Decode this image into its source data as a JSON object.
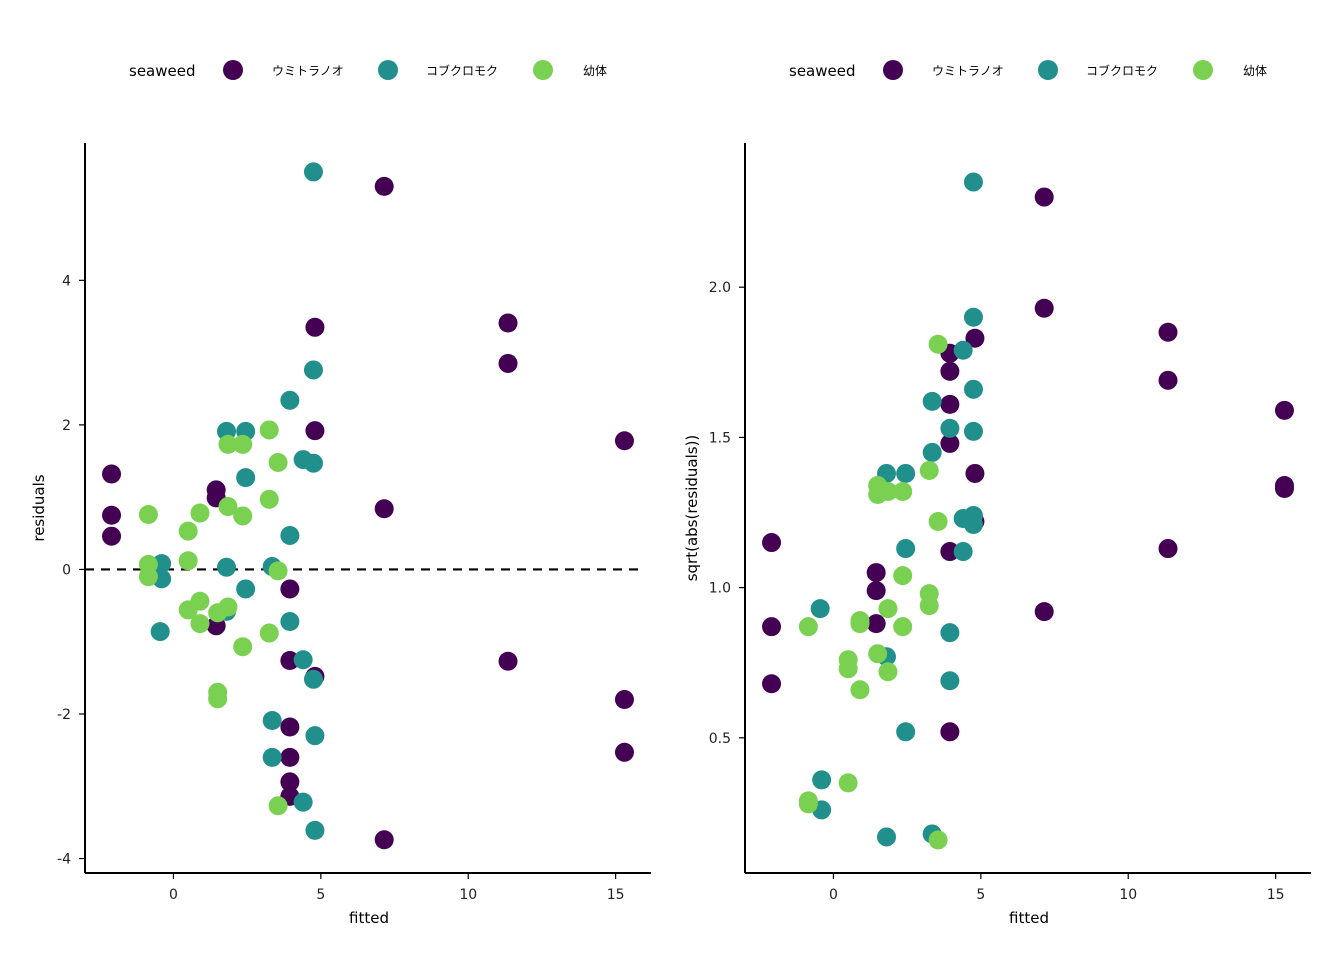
{
  "colors": {
    "ウミトラノオ": "#440154",
    "コブクロモク": "#21908C",
    "幼体": "#7AD151",
    "axis": "#000000",
    "refline": "#000000"
  },
  "chart_data": [
    {
      "type": "scatter",
      "xlabel": "fitted",
      "ylabel": "residuals",
      "legend_title": "seaweed",
      "legend_placement": "top",
      "xlim": [
        -3,
        16.2
      ],
      "ylim": [
        -4.2,
        5.9
      ],
      "xticks": [
        0,
        5,
        10,
        15
      ],
      "yticks": [
        -4,
        -2,
        0,
        2,
        4
      ],
      "reference_line": {
        "y": 0,
        "style": "dashed"
      },
      "grid": false,
      "series": [
        {
          "name": "ウミトラノオ",
          "points": [
            [
              -2.1,
              1.32
            ],
            [
              -2.1,
              0.75
            ],
            [
              -2.1,
              0.46
            ],
            [
              1.45,
              1.1
            ],
            [
              1.45,
              0.99
            ],
            [
              1.45,
              -0.78
            ],
            [
              3.95,
              -0.27
            ],
            [
              3.95,
              -1.26
            ],
            [
              3.95,
              -2.18
            ],
            [
              3.95,
              -2.6
            ],
            [
              3.95,
              -2.94
            ],
            [
              3.95,
              -3.14
            ],
            [
              4.8,
              3.35
            ],
            [
              4.8,
              1.92
            ],
            [
              4.8,
              -1.48
            ],
            [
              7.15,
              5.3
            ],
            [
              7.15,
              0.84
            ],
            [
              7.15,
              -3.74
            ],
            [
              11.35,
              3.41
            ],
            [
              11.35,
              2.85
            ],
            [
              11.35,
              -1.27
            ],
            [
              15.3,
              1.78
            ],
            [
              15.3,
              -1.8
            ],
            [
              15.3,
              -2.53
            ]
          ]
        },
        {
          "name": "コブクロモク",
          "points": [
            [
              -0.4,
              0.08
            ],
            [
              -0.4,
              -0.13
            ],
            [
              -0.45,
              -0.86
            ],
            [
              1.8,
              1.91
            ],
            [
              1.8,
              0.03
            ],
            [
              1.8,
              -0.58
            ],
            [
              2.45,
              1.91
            ],
            [
              2.45,
              1.27
            ],
            [
              2.45,
              -0.27
            ],
            [
              3.35,
              0.04
            ],
            [
              3.35,
              -2.09
            ],
            [
              3.35,
              -2.6
            ],
            [
              3.95,
              2.34
            ],
            [
              3.95,
              0.47
            ],
            [
              3.95,
              -0.72
            ],
            [
              4.4,
              1.52
            ],
            [
              4.4,
              -1.25
            ],
            [
              4.4,
              -3.22
            ],
            [
              4.75,
              5.5
            ],
            [
              4.75,
              2.76
            ],
            [
              4.75,
              1.47
            ],
            [
              4.75,
              -1.52
            ],
            [
              4.8,
              -2.3
            ],
            [
              4.8,
              -3.61
            ]
          ]
        },
        {
          "name": "幼体",
          "points": [
            [
              -0.85,
              0.76
            ],
            [
              -0.85,
              0.07
            ],
            [
              -0.85,
              -0.1
            ],
            [
              0.5,
              0.53
            ],
            [
              0.5,
              0.12
            ],
            [
              0.5,
              -0.56
            ],
            [
              0.9,
              0.78
            ],
            [
              0.9,
              -0.44
            ],
            [
              0.9,
              -0.75
            ],
            [
              1.5,
              -1.7
            ],
            [
              1.5,
              -1.79
            ],
            [
              1.5,
              -0.6
            ],
            [
              1.85,
              1.73
            ],
            [
              1.85,
              0.87
            ],
            [
              1.85,
              -0.52
            ],
            [
              2.35,
              1.73
            ],
            [
              2.35,
              0.74
            ],
            [
              2.35,
              -1.07
            ],
            [
              3.25,
              1.93
            ],
            [
              3.25,
              0.97
            ],
            [
              3.25,
              -0.88
            ],
            [
              3.55,
              1.48
            ],
            [
              3.55,
              -0.02
            ],
            [
              3.55,
              -3.27
            ]
          ]
        }
      ]
    },
    {
      "type": "scatter",
      "xlabel": "fitted",
      "ylabel": "sqrt(abs(residuals))",
      "legend_title": "seaweed",
      "legend_placement": "top",
      "xlim": [
        -3,
        16.2
      ],
      "ylim": [
        0.05,
        2.48
      ],
      "xticks": [
        0,
        5,
        10,
        15
      ],
      "yticks": [
        0.5,
        1.0,
        1.5,
        2.0
      ],
      "grid": false,
      "series": [
        {
          "name": "ウミトラノオ",
          "points": [
            [
              -2.1,
              1.15
            ],
            [
              -2.1,
              0.87
            ],
            [
              -2.1,
              0.68
            ],
            [
              1.45,
              1.05
            ],
            [
              1.45,
              0.99
            ],
            [
              1.45,
              0.88
            ],
            [
              3.95,
              1.78
            ],
            [
              3.95,
              1.72
            ],
            [
              3.95,
              1.61
            ],
            [
              3.95,
              1.48
            ],
            [
              3.95,
              1.12
            ],
            [
              3.95,
              0.52
            ],
            [
              4.8,
              1.83
            ],
            [
              4.8,
              1.38
            ],
            [
              4.8,
              1.22
            ],
            [
              7.15,
              2.3
            ],
            [
              7.15,
              1.93
            ],
            [
              7.15,
              0.92
            ],
            [
              11.35,
              1.85
            ],
            [
              11.35,
              1.69
            ],
            [
              11.35,
              1.13
            ],
            [
              15.3,
              1.59
            ],
            [
              15.3,
              1.34
            ],
            [
              15.3,
              1.33
            ]
          ]
        },
        {
          "name": "コブクロモク",
          "points": [
            [
              -0.4,
              0.36
            ],
            [
              -0.4,
              0.26
            ],
            [
              -0.45,
              0.93
            ],
            [
              1.8,
              1.38
            ],
            [
              1.8,
              0.77
            ],
            [
              1.8,
              0.17
            ],
            [
              2.45,
              1.38
            ],
            [
              2.45,
              1.13
            ],
            [
              2.45,
              0.52
            ],
            [
              3.35,
              1.45
            ],
            [
              3.35,
              1.62
            ],
            [
              3.35,
              0.18
            ],
            [
              3.95,
              1.53
            ],
            [
              3.95,
              0.85
            ],
            [
              3.95,
              0.69
            ],
            [
              4.4,
              1.79
            ],
            [
              4.4,
              1.23
            ],
            [
              4.4,
              1.12
            ],
            [
              4.75,
              2.35
            ],
            [
              4.75,
              1.9
            ],
            [
              4.75,
              1.66
            ],
            [
              4.75,
              1.52
            ],
            [
              4.75,
              1.24
            ],
            [
              4.75,
              1.21
            ]
          ]
        },
        {
          "name": "幼体",
          "points": [
            [
              -0.85,
              0.87
            ],
            [
              -0.85,
              0.29
            ],
            [
              -0.85,
              0.28
            ],
            [
              0.5,
              0.76
            ],
            [
              0.5,
              0.73
            ],
            [
              0.5,
              0.35
            ],
            [
              0.9,
              0.89
            ],
            [
              0.9,
              0.88
            ],
            [
              0.9,
              0.66
            ],
            [
              1.5,
              1.34
            ],
            [
              1.5,
              1.31
            ],
            [
              1.5,
              0.78
            ],
            [
              1.85,
              1.32
            ],
            [
              1.85,
              0.93
            ],
            [
              1.85,
              0.72
            ],
            [
              2.35,
              1.32
            ],
            [
              2.35,
              1.04
            ],
            [
              2.35,
              0.87
            ],
            [
              3.25,
              1.39
            ],
            [
              3.25,
              0.98
            ],
            [
              3.25,
              0.94
            ],
            [
              3.55,
              1.81
            ],
            [
              3.55,
              1.22
            ],
            [
              3.55,
              0.16
            ]
          ]
        }
      ]
    }
  ]
}
